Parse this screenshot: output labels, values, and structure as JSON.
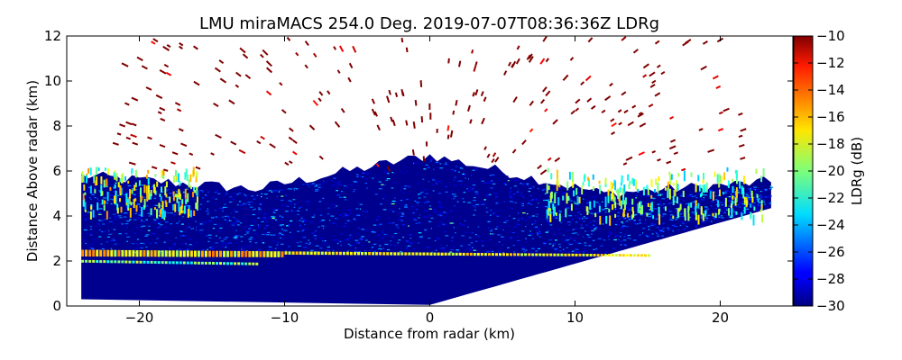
{
  "chart_data": {
    "type": "heatmap",
    "title": "LMU miraMACS 254.0 Deg. 2019-07-07T08:36:36Z  LDRg",
    "xlabel": "Distance from radar (km)",
    "ylabel": "Distance Above radar  (km)",
    "xlim": [
      -25,
      25
    ],
    "ylim": [
      0,
      12
    ],
    "x_ticks": [
      -20,
      -10,
      0,
      10,
      20
    ],
    "x_tick_labels": [
      "−20",
      "−10",
      "0",
      "10",
      "20"
    ],
    "y_ticks": [
      0,
      2,
      4,
      6,
      8,
      10,
      12
    ],
    "y_tick_labels": [
      "0",
      "2",
      "4",
      "6",
      "8",
      "10",
      "12"
    ],
    "colorbar": {
      "label": "LDRg (dB)",
      "min": -30,
      "max": -10,
      "ticks": [
        -30,
        -28,
        -26,
        -24,
        -22,
        -20,
        -18,
        -16,
        -14,
        -12,
        -10
      ],
      "tick_labels": [
        "−30",
        "−28",
        "−26",
        "−24",
        "−22",
        "−20",
        "−18",
        "−16",
        "−14",
        "−12",
        "−10"
      ],
      "colormap": "jet"
    },
    "features": {
      "scan_left_edge_km": -24,
      "scan_right_edge_km": 23.5,
      "ground_line": {
        "x": [
          0,
          23.5
        ],
        "y": [
          0,
          4.3
        ]
      },
      "low_bright_band": {
        "x": [
          -24,
          15
        ],
        "y_top": [
          2.5,
          2.3
        ],
        "y_bottom": [
          2.2,
          2.1
        ],
        "ldr_db": -18
      },
      "main_cloud": {
        "x": [
          -24,
          23
        ],
        "base_km": 2.4,
        "top_km": [
          5.8,
          5.2,
          6.7,
          5.0,
          5.5
        ],
        "ldr_db": -29
      },
      "upper_insects": {
        "y_range": [
          6,
          12
        ],
        "ldr_db": -10
      }
    }
  }
}
